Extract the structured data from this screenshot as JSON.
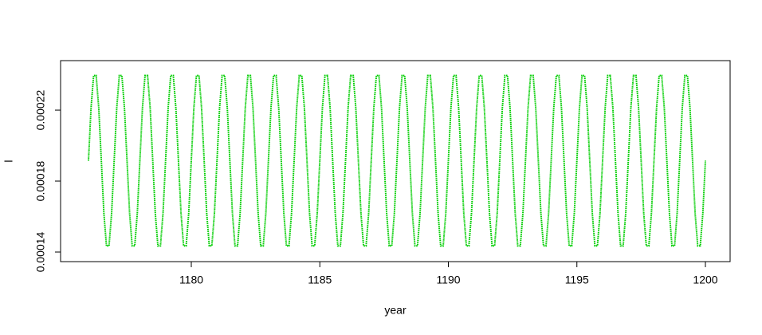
{
  "chart_data": {
    "type": "line",
    "xlabel": "year",
    "ylabel": "l",
    "color": "#00cd00",
    "xlim": [
      1174.915,
      1200.961
    ],
    "ylim": [
      0.0001346,
      0.0002479
    ],
    "xticks": [
      1180,
      1185,
      1190,
      1195,
      1200
    ],
    "yticks": [
      0.00014,
      0.00018,
      0.00022
    ],
    "x": [
      1176,
      1176.1,
      1176.2,
      1176.3,
      1176.4,
      1176.5,
      1176.6,
      1176.7,
      1176.8,
      1176.9,
      1177,
      1177.1,
      1177.2,
      1177.3,
      1177.4,
      1177.5,
      1177.6,
      1177.7,
      1177.8,
      1177.9,
      1178,
      1178.1,
      1178.2,
      1178.3,
      1178.4,
      1178.5,
      1178.6,
      1178.7,
      1178.8,
      1178.9,
      1179,
      1179.1,
      1179.2,
      1179.3,
      1179.4,
      1179.5,
      1179.6,
      1179.7,
      1179.8,
      1179.9,
      1180,
      1180.1,
      1180.2,
      1180.3,
      1180.4,
      1180.5,
      1180.6,
      1180.7,
      1180.8,
      1180.9,
      1181,
      1181.1,
      1181.2,
      1181.3,
      1181.4,
      1181.5,
      1181.6,
      1181.7,
      1181.8,
      1181.9,
      1182,
      1182.1,
      1182.2,
      1182.3,
      1182.4,
      1182.5,
      1182.6,
      1182.7,
      1182.8,
      1182.9,
      1183,
      1183.1,
      1183.2,
      1183.3,
      1183.4,
      1183.5,
      1183.6,
      1183.7,
      1183.8,
      1183.9,
      1184,
      1184.1,
      1184.2,
      1184.3,
      1184.4,
      1184.5,
      1184.6,
      1184.7,
      1184.8,
      1184.9,
      1185,
      1185.1,
      1185.2,
      1185.3,
      1185.4,
      1185.5,
      1185.6,
      1185.7,
      1185.8,
      1185.9,
      1186,
      1186.1,
      1186.2,
      1186.3,
      1186.4,
      1186.5,
      1186.6,
      1186.7,
      1186.8,
      1186.9,
      1187,
      1187.1,
      1187.2,
      1187.3,
      1187.4,
      1187.5,
      1187.6,
      1187.7,
      1187.8,
      1187.9,
      1188,
      1188.1,
      1188.2,
      1188.3,
      1188.4,
      1188.5,
      1188.6,
      1188.7,
      1188.8,
      1188.9,
      1189,
      1189.1,
      1189.2,
      1189.3,
      1189.4,
      1189.5,
      1189.6,
      1189.7,
      1189.8,
      1189.9,
      1190,
      1190.1,
      1190.2,
      1190.3,
      1190.4,
      1190.5,
      1190.6,
      1190.7,
      1190.8,
      1190.9,
      1191,
      1191.1,
      1191.2,
      1191.3,
      1191.4,
      1191.5,
      1191.6,
      1191.7,
      1191.8,
      1191.9,
      1192,
      1192.1,
      1192.2,
      1192.3,
      1192.4,
      1192.5,
      1192.6,
      1192.7,
      1192.8,
      1192.9,
      1193,
      1193.1,
      1193.2,
      1193.3,
      1193.4,
      1193.5,
      1193.6,
      1193.7,
      1193.8,
      1193.9,
      1194,
      1194.1,
      1194.2,
      1194.3,
      1194.4,
      1194.5,
      1194.6,
      1194.7,
      1194.8,
      1194.9,
      1195,
      1195.1,
      1195.2,
      1195.3,
      1195.4,
      1195.5,
      1195.6,
      1195.7,
      1195.8,
      1195.9,
      1196,
      1196.1,
      1196.2,
      1196.3,
      1196.4,
      1196.5,
      1196.6,
      1196.7,
      1196.8,
      1196.9,
      1197,
      1197.1,
      1197.2,
      1197.3,
      1197.4,
      1197.5,
      1197.6,
      1197.7,
      1197.8,
      1197.9,
      1198,
      1198.1,
      1198.2,
      1198.3,
      1198.4,
      1198.5,
      1198.6,
      1198.7,
      1198.8,
      1198.9,
      1199,
      1199.1,
      1199.2,
      1199.3,
      1199.4,
      1199.5,
      1199.6,
      1199.7,
      1199.8,
      1199.9,
      1200
    ],
    "values": [
      0.0001915,
      0.0002212,
      0.0002395,
      0.0002395,
      0.0002212,
      0.0001915,
      0.0001618,
      0.0001435,
      0.0001435,
      0.0001618,
      0.0001915,
      0.0002212,
      0.0002395,
      0.0002395,
      0.0002212,
      0.0001915,
      0.0001618,
      0.0001435,
      0.0001435,
      0.0001618,
      0.0001915,
      0.0002212,
      0.0002395,
      0.0002395,
      0.0002212,
      0.0001915,
      0.0001618,
      0.0001435,
      0.0001435,
      0.0001618,
      0.0001915,
      0.0002212,
      0.0002395,
      0.0002395,
      0.0002212,
      0.0001915,
      0.0001618,
      0.0001435,
      0.0001435,
      0.0001618,
      0.0001915,
      0.0002212,
      0.0002395,
      0.0002395,
      0.0002212,
      0.0001915,
      0.0001618,
      0.0001435,
      0.0001435,
      0.0001618,
      0.0001915,
      0.0002212,
      0.0002395,
      0.0002395,
      0.0002212,
      0.0001915,
      0.0001618,
      0.0001435,
      0.0001435,
      0.0001618,
      0.0001915,
      0.0002212,
      0.0002395,
      0.0002395,
      0.0002212,
      0.0001915,
      0.0001618,
      0.0001435,
      0.0001435,
      0.0001618,
      0.0001915,
      0.0002212,
      0.0002395,
      0.0002395,
      0.0002212,
      0.0001915,
      0.0001618,
      0.0001435,
      0.0001435,
      0.0001618,
      0.0001915,
      0.0002212,
      0.0002395,
      0.0002395,
      0.0002212,
      0.0001915,
      0.0001618,
      0.0001435,
      0.0001435,
      0.0001618,
      0.0001915,
      0.0002212,
      0.0002395,
      0.0002395,
      0.0002212,
      0.0001915,
      0.0001618,
      0.0001435,
      0.0001435,
      0.0001618,
      0.0001915,
      0.0002212,
      0.0002395,
      0.0002395,
      0.0002212,
      0.0001915,
      0.0001618,
      0.0001435,
      0.0001435,
      0.0001618,
      0.0001915,
      0.0002212,
      0.0002395,
      0.0002395,
      0.0002212,
      0.0001915,
      0.0001618,
      0.0001435,
      0.0001435,
      0.0001618,
      0.0001915,
      0.0002212,
      0.0002395,
      0.0002395,
      0.0002212,
      0.0001915,
      0.0001618,
      0.0001435,
      0.0001435,
      0.0001618,
      0.0001915,
      0.0002212,
      0.0002395,
      0.0002395,
      0.0002212,
      0.0001915,
      0.0001618,
      0.0001435,
      0.0001435,
      0.0001618,
      0.0001915,
      0.0002212,
      0.0002395,
      0.0002395,
      0.0002212,
      0.0001915,
      0.0001618,
      0.0001435,
      0.0001435,
      0.0001618,
      0.0001915,
      0.0002212,
      0.0002395,
      0.0002395,
      0.0002212,
      0.0001915,
      0.0001618,
      0.0001435,
      0.0001435,
      0.0001618,
      0.0001915,
      0.0002212,
      0.0002395,
      0.0002395,
      0.0002212,
      0.0001915,
      0.0001618,
      0.0001435,
      0.0001435,
      0.0001618,
      0.0001915,
      0.0002212,
      0.0002395,
      0.0002395,
      0.0002212,
      0.0001915,
      0.0001618,
      0.0001435,
      0.0001435,
      0.0001618,
      0.0001915,
      0.0002212,
      0.0002395,
      0.0002395,
      0.0002212,
      0.0001915,
      0.0001618,
      0.0001435,
      0.0001435,
      0.0001618,
      0.0001915,
      0.0002212,
      0.0002395,
      0.0002395,
      0.0002212,
      0.0001915,
      0.0001618,
      0.0001435,
      0.0001435,
      0.0001618,
      0.0001915,
      0.0002212,
      0.0002395,
      0.0002395,
      0.0002212,
      0.0001915,
      0.0001618,
      0.0001435,
      0.0001435,
      0.0001618,
      0.0001915,
      0.0002212,
      0.0002395,
      0.0002395,
      0.0002212,
      0.0001915,
      0.0001618,
      0.0001435,
      0.0001435,
      0.0001618,
      0.0001915,
      0.0002212,
      0.0002395,
      0.0002395,
      0.0002212,
      0.0001915,
      0.0001618,
      0.0001435,
      0.0001435,
      0.0001618,
      0.0001915,
      0.0002212,
      0.0002395,
      0.0002395,
      0.0002212,
      0.0001915,
      0.0001618,
      0.0001435,
      0.0001435,
      0.0001618,
      0.0001915
    ]
  }
}
